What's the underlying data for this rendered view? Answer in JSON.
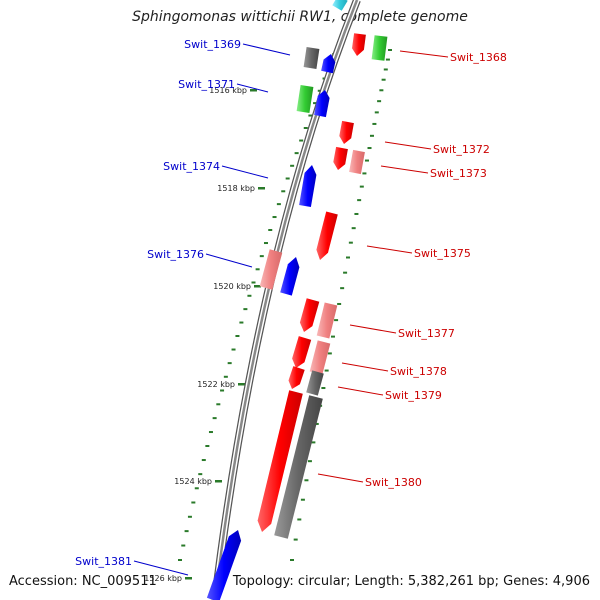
{
  "title": "Sphingomonas wittichii RW1, complete genome",
  "footer": {
    "accession": "Accession: NC_009511",
    "summary": "Topology: circular; Length: 5,382,261 bp; Genes: 4,906"
  },
  "colors": {
    "label_left": "#0000cc",
    "label_right": "#cc0000",
    "tick": "#2a7a2a",
    "backbone": "#888888",
    "red": "#ff0000",
    "pink": "#f08080",
    "blue": "#0000ff",
    "gray": "#666666",
    "green": "#33cc33",
    "cyan": "#33ccdd"
  },
  "ticks": [
    {
      "label": "1516 kbp"
    },
    {
      "label": "1518 kbp"
    },
    {
      "label": "1520 kbp"
    },
    {
      "label": "1522 kbp"
    },
    {
      "label": "1524 kbp"
    },
    {
      "label": "1526 kbp"
    }
  ],
  "labels_left": [
    {
      "text": "Swit_1369"
    },
    {
      "text": "Swit_1371"
    },
    {
      "text": "Swit_1374"
    },
    {
      "text": "Swit_1376"
    },
    {
      "text": "Swit_1381"
    }
  ],
  "labels_right": [
    {
      "text": "Swit_1368"
    },
    {
      "text": "Swit_1372"
    },
    {
      "text": "Swit_1373"
    },
    {
      "text": "Swit_1375"
    },
    {
      "text": "Swit_1377"
    },
    {
      "text": "Swit_1378"
    },
    {
      "text": "Swit_1379"
    },
    {
      "text": "Swit_1380"
    }
  ]
}
